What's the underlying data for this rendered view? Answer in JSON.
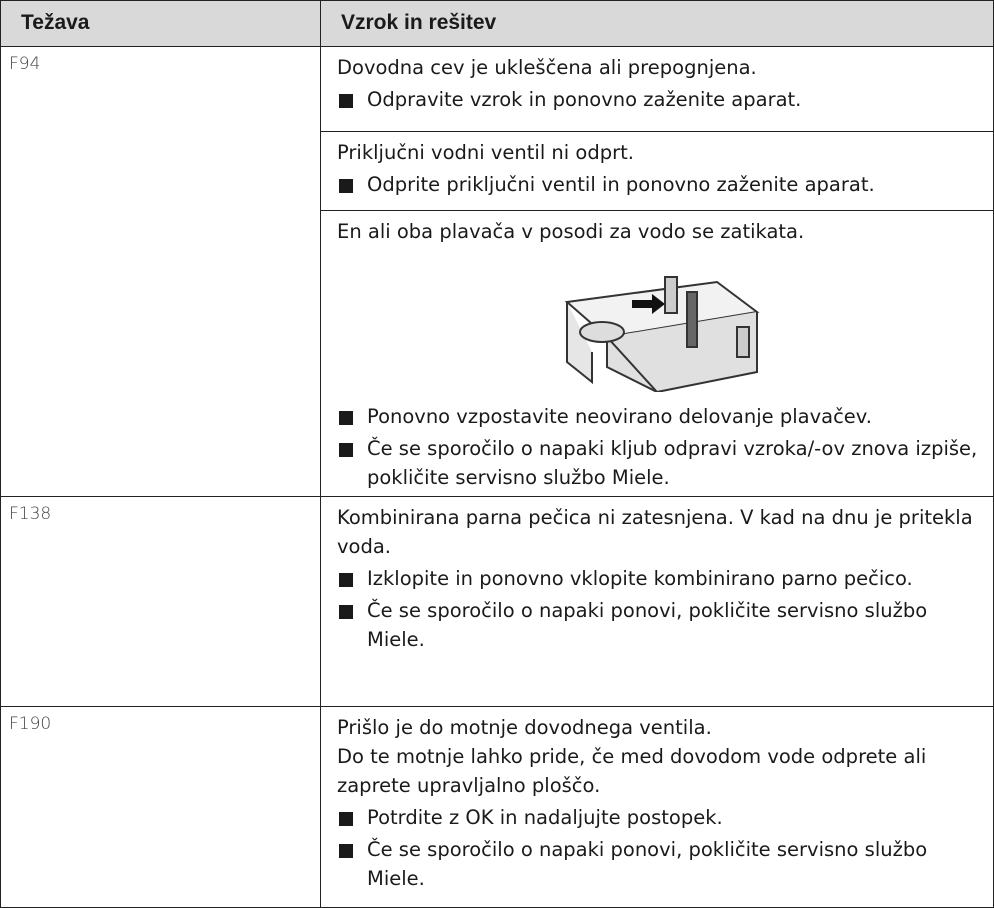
{
  "table": {
    "header": [
      "Težava",
      "Vzrok in rešitev"
    ],
    "rows": [
      {
        "code": "F94",
        "causes": [
          {
            "paragraphs": [
              "Dovodna cev je ukleščena ali prepognjena."
            ],
            "steps": [
              "Odpravite vzrok in ponovno zaženite aparat."
            ]
          },
          {
            "paragraphs": [
              "Priključni vodni ventil ni odprt."
            ],
            "steps": [
              "Odprite priključni ventil in ponovno zaženite aparat."
            ]
          },
          {
            "paragraphs": [
              "En ali oba plavača v posodi za vodo se zatikata."
            ],
            "steps": [
              "Ponovno vzpostavite neovirano delovanje plavačev.",
              "Če se sporočilo o napaki kljub odpravi vzroka/-ov znova izpiše, pokličite servisno službo Miele."
            ]
          }
        ]
      },
      {
        "code": "F138",
        "causes": [
          {
            "paragraphs": [
              "Kombinirana parna pečica ni zatesnjena. V kad na dnu je pritekla voda."
            ],
            "steps": [
              "Izklopite in ponovno vklopite kombinirano parno pečico.",
              "Če se sporočilo o napaki ponovi, pokličite servisno službo Miele."
            ]
          }
        ]
      },
      {
        "code": "F190",
        "causes": [
          {
            "paragraphs": [
              "Prišlo je do motnje dovodnega ventila.",
              "Do te motnje lahko pride, če med dovodom vode odprete ali zaprete upravljalno ploščo."
            ],
            "steps": [
              "Potrdite z OK in nadaljujte postopek.",
              "Če se sporočilo o napaki ponovi, pokličite servisno službo Miele."
            ]
          }
        ]
      }
    ]
  }
}
